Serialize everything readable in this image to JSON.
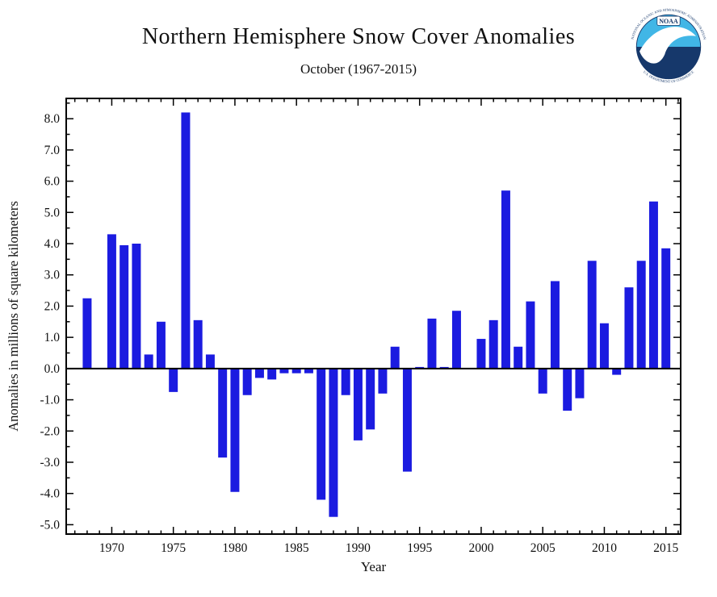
{
  "header": {
    "title": "Northern Hemisphere Snow Cover Anomalies",
    "subtitle": "October (1967-2015)"
  },
  "logo": {
    "label": "NOAA",
    "ring_text_top": "NATIONAL OCEANIC AND ATMOSPHERIC ADMINISTRATION",
    "ring_text_bottom": "U.S. DEPARTMENT OF COMMERCE",
    "sky_color": "#41b6e6",
    "sea_color": "#16386b"
  },
  "chart_data": {
    "type": "bar",
    "title": "Northern Hemisphere Snow Cover Anomalies",
    "subtitle": "October (1967-2015)",
    "xlabel": "Year",
    "ylabel": "Anomalies in millions of square kilometers",
    "bar_color": "#1b1be0",
    "axis_color": "#000000",
    "ylim": [
      -5.3,
      8.65
    ],
    "xlim": [
      1966.3,
      2016.2
    ],
    "yticks": [
      -5.0,
      -4.0,
      -3.0,
      -2.0,
      -1.0,
      0.0,
      1.0,
      2.0,
      3.0,
      4.0,
      5.0,
      6.0,
      7.0,
      8.0
    ],
    "xticks": [
      1970,
      1975,
      1980,
      1985,
      1990,
      1995,
      2000,
      2005,
      2010,
      2015
    ],
    "grid": false,
    "legend": "none",
    "years": [
      1967,
      1968,
      1969,
      1970,
      1971,
      1972,
      1973,
      1974,
      1975,
      1976,
      1977,
      1978,
      1979,
      1980,
      1981,
      1982,
      1983,
      1984,
      1985,
      1986,
      1987,
      1988,
      1989,
      1990,
      1991,
      1992,
      1993,
      1994,
      1995,
      1996,
      1997,
      1998,
      1999,
      2000,
      2001,
      2002,
      2003,
      2004,
      2005,
      2006,
      2007,
      2008,
      2009,
      2010,
      2011,
      2012,
      2013,
      2014,
      2015
    ],
    "values": [
      0.0,
      2.25,
      null,
      4.3,
      3.95,
      4.0,
      0.45,
      1.5,
      -0.75,
      8.2,
      1.55,
      0.45,
      -2.85,
      -3.95,
      -0.85,
      -0.3,
      -0.35,
      -0.15,
      -0.15,
      -0.15,
      -4.2,
      -4.75,
      -0.85,
      -2.3,
      -1.95,
      -0.8,
      0.7,
      -3.3,
      0.05,
      1.6,
      0.05,
      1.85,
      0.0,
      0.95,
      1.55,
      5.7,
      0.7,
      2.15,
      -0.8,
      2.8,
      -1.35,
      -0.95,
      3.45,
      1.45,
      -0.2,
      2.6,
      3.45,
      5.35,
      3.85
    ]
  }
}
